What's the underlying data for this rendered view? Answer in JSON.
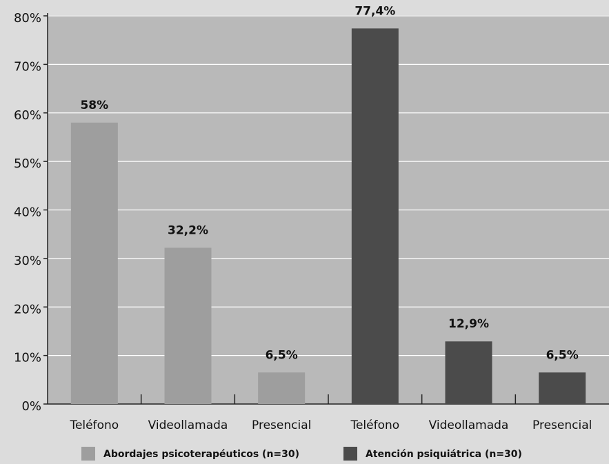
{
  "chart_data": {
    "type": "bar",
    "categories": [
      "Teléfono",
      "Videollamada",
      "Presencial",
      "Teléfono",
      "Videollamada",
      "Presencial"
    ],
    "series": [
      {
        "name": "Abordajes psicoterapéuticos (n=30)",
        "color": "#9e9e9e",
        "values": [
          58,
          32.2,
          6.5,
          null,
          null,
          null
        ],
        "value_labels": [
          "58%",
          "32,2%",
          "6,5%",
          null,
          null,
          null
        ]
      },
      {
        "name": "Atención psiquiátrica (n=30)",
        "color": "#4b4b4b",
        "values": [
          null,
          null,
          null,
          77.4,
          12.9,
          6.5
        ],
        "value_labels": [
          null,
          null,
          null,
          "77,4%",
          "12,9%",
          "6,5%"
        ]
      }
    ],
    "ylim": [
      0,
      80
    ],
    "yticks": [
      {
        "value": 0,
        "label": "0%"
      },
      {
        "value": 10,
        "label": "10%"
      },
      {
        "value": 20,
        "label": "20%"
      },
      {
        "value": 30,
        "label": "30%"
      },
      {
        "value": 40,
        "label": "40%"
      },
      {
        "value": 50,
        "label": "50%"
      },
      {
        "value": 60,
        "label": "60%"
      },
      {
        "value": 70,
        "label": "70%"
      },
      {
        "value": 80,
        "label": "80%"
      }
    ],
    "grid": true,
    "legend": "bottom"
  }
}
